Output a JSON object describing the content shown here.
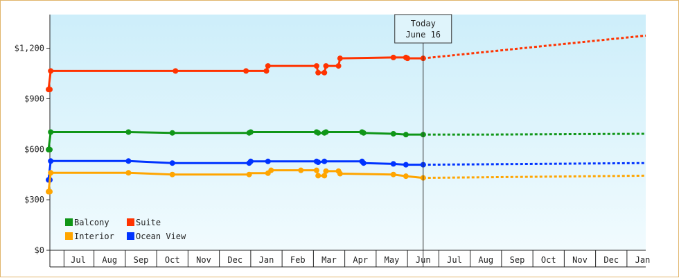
{
  "chart_data": {
    "type": "line",
    "y_tick_labels": [
      "$0",
      "$300",
      "$600",
      "$900",
      "$1,200"
    ],
    "y_ticks": [
      0,
      300,
      600,
      900,
      1200
    ],
    "ylim": [
      0,
      1400
    ],
    "x_ticks": [
      {
        "label": "Jul",
        "month": 1
      },
      {
        "label": "Aug",
        "month": 2
      },
      {
        "label": "Sep",
        "month": 3
      },
      {
        "label": "Oct",
        "month": 4
      },
      {
        "label": "Nov",
        "month": 5
      },
      {
        "label": "Dec",
        "month": 6
      },
      {
        "label": "Jan",
        "month": 7
      },
      {
        "label": "Feb",
        "month": 8
      },
      {
        "label": "Mar",
        "month": 9
      },
      {
        "label": "Apr",
        "month": 10
      },
      {
        "label": "May",
        "month": 11
      },
      {
        "label": "Jun",
        "month": 12
      },
      {
        "label": "Jul",
        "month": 13
      },
      {
        "label": "Aug",
        "month": 14
      },
      {
        "label": "Sep",
        "month": 15
      },
      {
        "label": "Oct",
        "month": 16
      },
      {
        "label": "Nov",
        "month": 17
      },
      {
        "label": "Dec",
        "month": 18
      },
      {
        "label": "Jan",
        "month": 19
      }
    ],
    "xlim": [
      -0.42,
      19.25
    ],
    "today": {
      "line1": "Today",
      "line2": "June 16",
      "month": 12.0
    },
    "legend": [
      {
        "name": "Balcony",
        "color": "#109618"
      },
      {
        "name": "Suite",
        "color": "#ff3300"
      },
      {
        "name": "Interior",
        "color": "#ffa500"
      },
      {
        "name": "Ocean View",
        "color": "#0033ff"
      }
    ],
    "series": [
      {
        "name": "Suite",
        "color": "#ff3300",
        "points": [
          [
            -0.42,
            955
          ],
          [
            0.05,
            955
          ],
          [
            0.12,
            1065
          ],
          [
            4.1,
            1065
          ],
          [
            6.35,
            1065
          ],
          [
            7.0,
            1065
          ],
          [
            7.05,
            1095
          ],
          [
            8.6,
            1095
          ],
          [
            8.65,
            1055
          ],
          [
            8.85,
            1055
          ],
          [
            8.9,
            1095
          ],
          [
            9.3,
            1095
          ],
          [
            9.35,
            1140
          ],
          [
            11.05,
            1145
          ],
          [
            11.45,
            1145
          ],
          [
            11.5,
            1140
          ],
          [
            12.0,
            1140
          ]
        ],
        "markers": [
          [
            -0.42,
            955
          ],
          [
            0.05,
            955
          ],
          [
            0.12,
            1065
          ],
          [
            4.1,
            1065
          ],
          [
            6.35,
            1065
          ],
          [
            7.0,
            1065
          ],
          [
            7.05,
            1095
          ],
          [
            8.6,
            1095
          ],
          [
            8.65,
            1055
          ],
          [
            8.85,
            1055
          ],
          [
            8.9,
            1095
          ],
          [
            9.3,
            1095
          ],
          [
            9.35,
            1140
          ],
          [
            11.05,
            1145
          ],
          [
            11.45,
            1145
          ],
          [
            11.5,
            1140
          ],
          [
            12.0,
            1140
          ]
        ],
        "forecast": [
          [
            12.0,
            1140
          ],
          [
            19.25,
            1275
          ]
        ]
      },
      {
        "name": "Balcony",
        "color": "#109618",
        "points": [
          [
            -0.42,
            598
          ],
          [
            0.05,
            598
          ],
          [
            0.12,
            702
          ],
          [
            2.6,
            702
          ],
          [
            4.0,
            697
          ],
          [
            6.45,
            697
          ],
          [
            6.5,
            702
          ],
          [
            8.6,
            702
          ],
          [
            8.65,
            697
          ],
          [
            8.85,
            697
          ],
          [
            8.9,
            702
          ],
          [
            10.05,
            702
          ],
          [
            10.1,
            697
          ],
          [
            11.05,
            692
          ],
          [
            11.45,
            687
          ],
          [
            12.0,
            687
          ]
        ],
        "markers": [
          [
            -0.42,
            598
          ],
          [
            0.05,
            598
          ],
          [
            0.12,
            702
          ],
          [
            2.6,
            702
          ],
          [
            4.0,
            697
          ],
          [
            6.45,
            697
          ],
          [
            6.5,
            702
          ],
          [
            8.6,
            702
          ],
          [
            8.65,
            697
          ],
          [
            8.85,
            697
          ],
          [
            8.9,
            702
          ],
          [
            10.05,
            702
          ],
          [
            10.1,
            697
          ],
          [
            11.05,
            692
          ],
          [
            11.45,
            687
          ],
          [
            12.0,
            687
          ]
        ],
        "forecast": [
          [
            12.0,
            687
          ],
          [
            14.0,
            687
          ],
          [
            19.25,
            692
          ]
        ]
      },
      {
        "name": "Ocean View",
        "color": "#0033ff",
        "points": [
          [
            -0.42,
            418
          ],
          [
            0.05,
            418
          ],
          [
            0.12,
            530
          ],
          [
            2.6,
            530
          ],
          [
            4.0,
            518
          ],
          [
            6.45,
            518
          ],
          [
            6.5,
            528
          ],
          [
            7.05,
            528
          ],
          [
            8.6,
            528
          ],
          [
            8.65,
            523
          ],
          [
            8.85,
            528
          ],
          [
            10.05,
            528
          ],
          [
            10.1,
            518
          ],
          [
            11.05,
            513
          ],
          [
            11.45,
            508
          ],
          [
            12.0,
            508
          ]
        ],
        "markers": [
          [
            -0.42,
            418
          ],
          [
            0.05,
            418
          ],
          [
            0.12,
            530
          ],
          [
            2.6,
            530
          ],
          [
            4.0,
            518
          ],
          [
            6.45,
            518
          ],
          [
            6.5,
            528
          ],
          [
            7.05,
            528
          ],
          [
            8.6,
            528
          ],
          [
            8.65,
            523
          ],
          [
            8.85,
            528
          ],
          [
            10.05,
            528
          ],
          [
            10.1,
            518
          ],
          [
            11.05,
            513
          ],
          [
            11.45,
            508
          ],
          [
            12.0,
            508
          ]
        ],
        "forecast": [
          [
            12.0,
            508
          ],
          [
            19.25,
            518
          ]
        ]
      },
      {
        "name": "Interior",
        "color": "#ffa500",
        "points": [
          [
            -0.42,
            348
          ],
          [
            0.05,
            348
          ],
          [
            0.12,
            460
          ],
          [
            2.6,
            460
          ],
          [
            4.0,
            450
          ],
          [
            6.45,
            450
          ],
          [
            6.5,
            458
          ],
          [
            7.05,
            458
          ],
          [
            7.15,
            475
          ],
          [
            8.1,
            475
          ],
          [
            8.6,
            475
          ],
          [
            8.65,
            443
          ],
          [
            8.85,
            443
          ],
          [
            8.9,
            470
          ],
          [
            9.3,
            470
          ],
          [
            9.35,
            455
          ],
          [
            11.05,
            450
          ],
          [
            11.45,
            440
          ],
          [
            12.0,
            430
          ]
        ],
        "markers": [
          [
            -0.42,
            348
          ],
          [
            0.05,
            348
          ],
          [
            0.12,
            460
          ],
          [
            2.6,
            460
          ],
          [
            4.0,
            450
          ],
          [
            6.45,
            450
          ],
          [
            7.05,
            458
          ],
          [
            7.15,
            475
          ],
          [
            8.1,
            475
          ],
          [
            8.6,
            475
          ],
          [
            8.65,
            443
          ],
          [
            8.85,
            443
          ],
          [
            8.9,
            470
          ],
          [
            9.3,
            470
          ],
          [
            9.35,
            455
          ],
          [
            11.05,
            450
          ],
          [
            11.45,
            440
          ],
          [
            12.0,
            430
          ]
        ],
        "forecast": [
          [
            12.0,
            430
          ],
          [
            19.25,
            443
          ]
        ]
      }
    ]
  }
}
